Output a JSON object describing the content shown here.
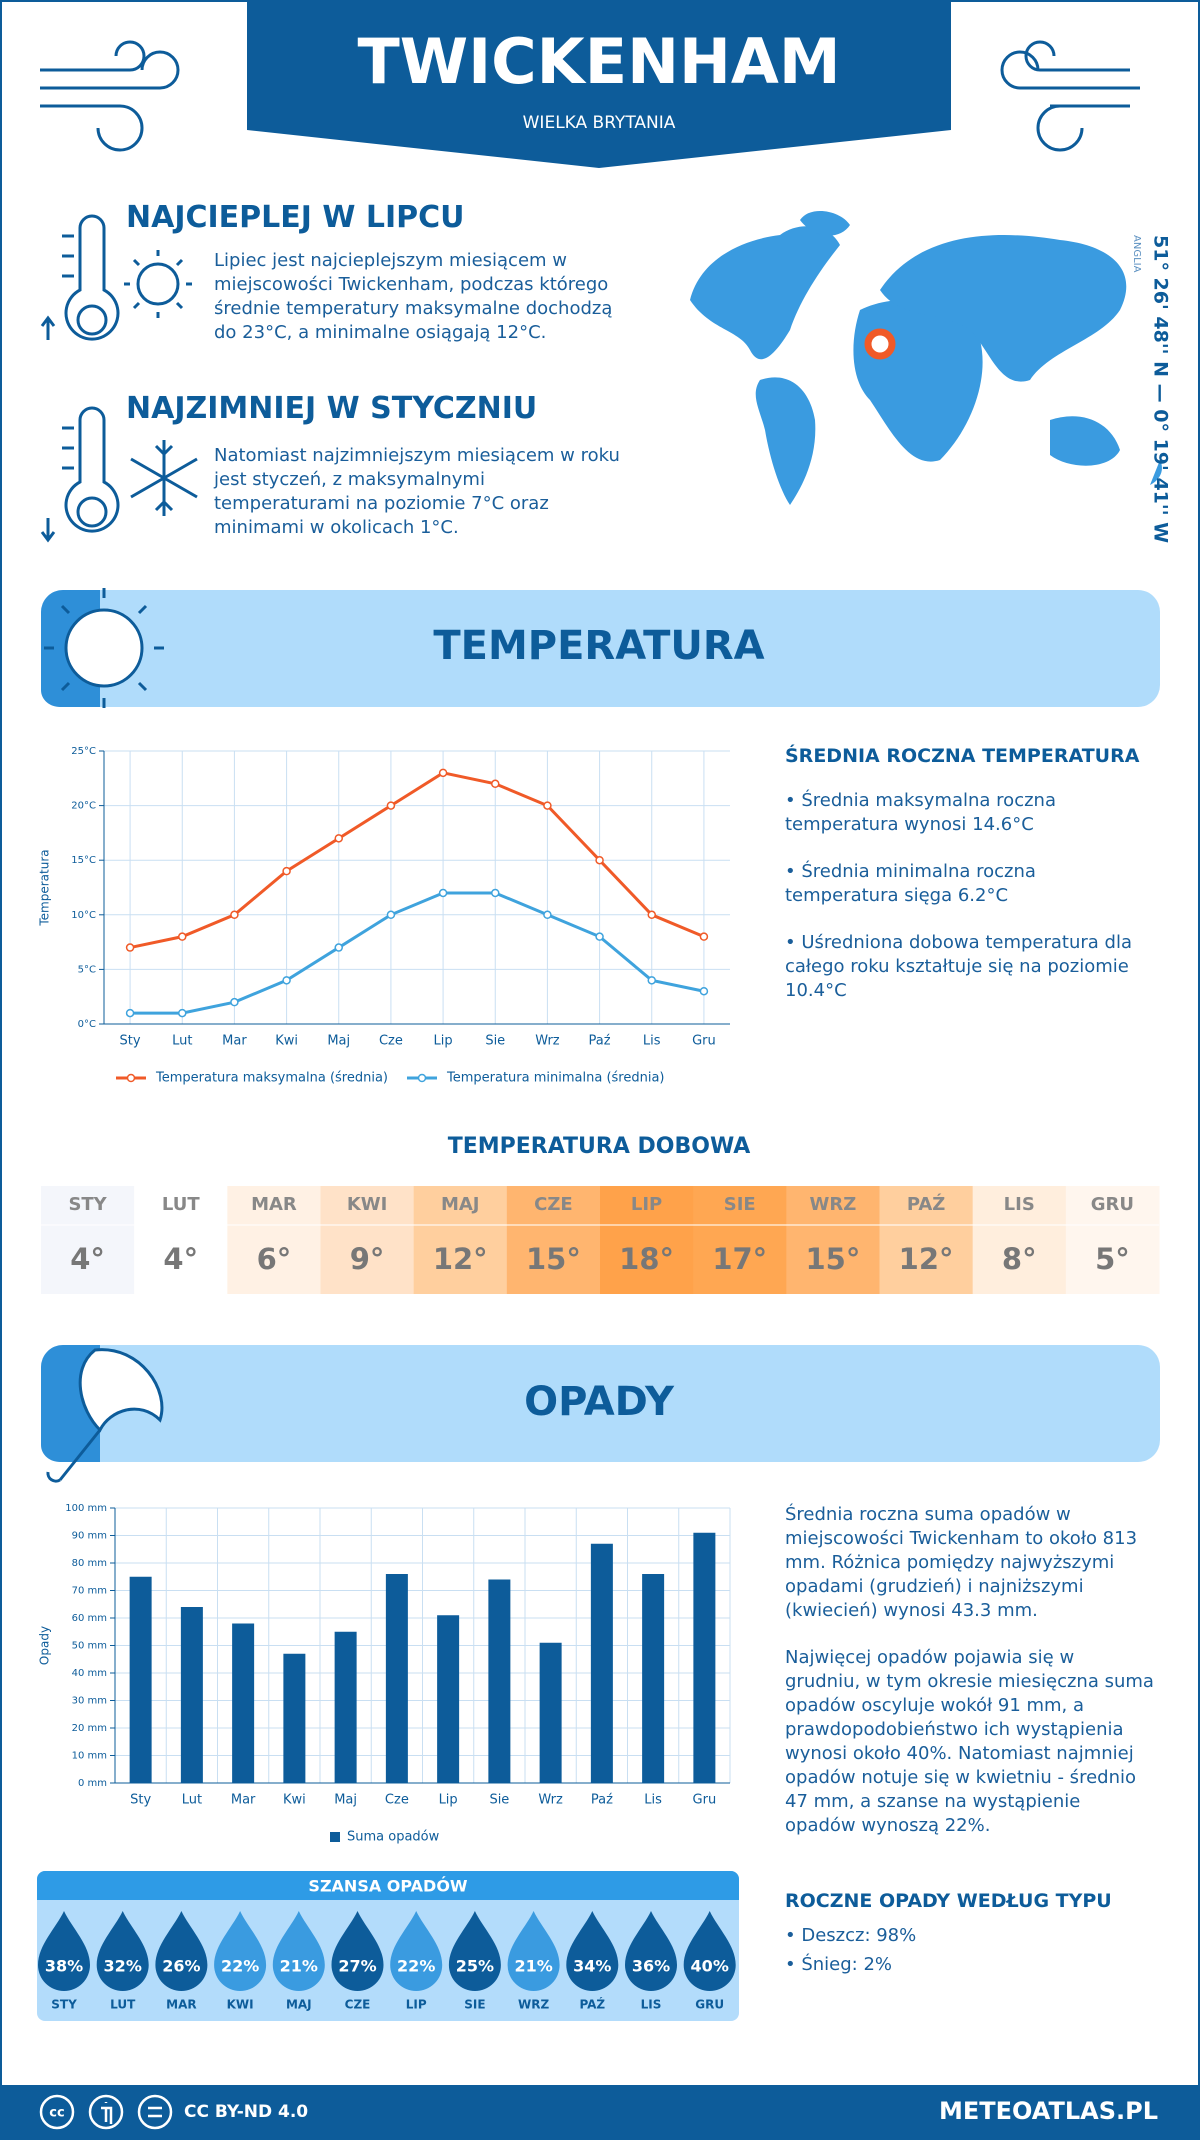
{
  "header": {
    "title": "TWICKENHAM",
    "subtitle": "WIELKA BRYTANIA"
  },
  "warmest": {
    "title": "NAJCIEPLEJ W LIPCU",
    "text": "Lipiec jest najcieplejszym miesiącem w miejscowości Twickenham, podczas którego średnie temperatury maksymalne dochodzą do 23°C, a minimalne osiągają 12°C."
  },
  "coldest": {
    "title": "NAJZIMNIEJ W STYCZNIU",
    "text": "Natomiast najzimniejszym miesiącem w roku jest styczeń, z maksymalnymi temperaturami na poziomie 7°C oraz minimami w okolicach 1°C."
  },
  "location": {
    "coordinates": "51° 26' 48'' N — 0° 19' 41'' W",
    "region": "ANGLIA"
  },
  "temperature_section": {
    "title": "TEMPERATURA",
    "summary_title": "ŚREDNIA ROCZNA TEMPERATURA",
    "bullets": [
      "• Średnia maksymalna roczna temperatura wynosi 14.6°C",
      "• Średnia minimalna roczna temperatura sięga 6.2°C",
      "• Uśredniona dobowa temperatura dla całego roku kształtuje się na poziomie 10.4°C"
    ]
  },
  "chart_data": [
    {
      "type": "line",
      "y_label": "Temperatura",
      "grid": true,
      "categories": [
        "Sty",
        "Lut",
        "Mar",
        "Kwi",
        "Maj",
        "Cze",
        "Lip",
        "Sie",
        "Wrz",
        "Paź",
        "Lis",
        "Gru"
      ],
      "series": [
        {
          "name": "Temperatura maksymalna (średnia)",
          "color": "#f05a28",
          "values": [
            7,
            8,
            10,
            14,
            17,
            20,
            23,
            22,
            20,
            15,
            10,
            8
          ]
        },
        {
          "name": "Temperatura minimalna (średnia)",
          "color": "#3fa3dd",
          "values": [
            1,
            1,
            2,
            4,
            7,
            10,
            12,
            12,
            10,
            8,
            4,
            3
          ]
        }
      ],
      "ylim": [
        0,
        25
      ],
      "yticks": [
        {
          "value": 0,
          "label": "0°C"
        },
        {
          "value": 5,
          "label": "5°C"
        },
        {
          "value": 10,
          "label": "10°C"
        },
        {
          "value": 15,
          "label": "15°C"
        },
        {
          "value": 20,
          "label": "20°C"
        },
        {
          "value": 25,
          "label": "25°C"
        }
      ]
    },
    {
      "type": "bar",
      "y_label": "Opady",
      "grid": true,
      "categories": [
        "Sty",
        "Lut",
        "Mar",
        "Kwi",
        "Maj",
        "Cze",
        "Lip",
        "Sie",
        "Wrz",
        "Paź",
        "Lis",
        "Gru"
      ],
      "series": [
        {
          "name": "Suma opadów",
          "color": "#0d5c9a",
          "values": [
            75,
            64,
            58,
            47,
            55,
            76,
            61,
            74,
            51,
            87,
            76,
            91
          ]
        }
      ],
      "ylim": [
        0,
        100
      ],
      "yticks": [
        {
          "value": 0,
          "label": "0 mm"
        },
        {
          "value": 10,
          "label": "10 mm"
        },
        {
          "value": 20,
          "label": "20 mm"
        },
        {
          "value": 30,
          "label": "30 mm"
        },
        {
          "value": 40,
          "label": "40 mm"
        },
        {
          "value": 50,
          "label": "50 mm"
        },
        {
          "value": 60,
          "label": "60 mm"
        },
        {
          "value": 70,
          "label": "70 mm"
        },
        {
          "value": 80,
          "label": "80 mm"
        },
        {
          "value": 90,
          "label": "90 mm"
        },
        {
          "value": 100,
          "label": "100 mm"
        }
      ]
    }
  ],
  "daily_temperature": {
    "title": "TEMPERATURA DOBOWA",
    "months": [
      "STY",
      "LUT",
      "MAR",
      "KWI",
      "MAJ",
      "CZE",
      "LIP",
      "SIE",
      "WRZ",
      "PAŹ",
      "LIS",
      "GRU"
    ],
    "values": [
      "4°",
      "4°",
      "6°",
      "9°",
      "12°",
      "15°",
      "18°",
      "17°",
      "15°",
      "12°",
      "8°",
      "5°"
    ],
    "colors": [
      "#f4f6fb",
      "#ffffff",
      "#fff1e4",
      "#ffe2c8",
      "#ffcf9e",
      "#ffb56f",
      "#ffa24a",
      "#ffa752",
      "#ffb56f",
      "#ffcf9e",
      "#ffeedd",
      "#fff6ee"
    ]
  },
  "precipitation_section": {
    "title": "OPADY",
    "paragraphs": [
      "Średnia roczna suma opadów w miejscowości Twickenham to około 813 mm. Różnica pomiędzy najwyższymi opadami (grudzień) i najniższymi (kwiecień) wynosi 43.3 mm.",
      "Najwięcej opadów pojawia się w grudniu, w tym okresie miesięczna suma opadów oscyluje wokół 91 mm, a prawdopodobieństwo ich wystąpienia wynosi około 40%. Natomiast najmniej opadów notuje się w kwietniu - średnio 47 mm, a szanse na wystąpienie opadów wynoszą 22%."
    ]
  },
  "rain_chance": {
    "title": "SZANSA OPADÓW",
    "months": [
      "STY",
      "LUT",
      "MAR",
      "KWI",
      "MAJ",
      "CZE",
      "LIP",
      "SIE",
      "WRZ",
      "PAŹ",
      "LIS",
      "GRU"
    ],
    "values": [
      "38%",
      "32%",
      "26%",
      "22%",
      "21%",
      "27%",
      "22%",
      "25%",
      "21%",
      "34%",
      "36%",
      "40%"
    ],
    "colors": [
      "#0d5c9a",
      "#0d5c9a",
      "#0d5c9a",
      "#3a9be0",
      "#3a9be0",
      "#0d5c9a",
      "#3a9be0",
      "#0d5c9a",
      "#3a9be0",
      "#0d5c9a",
      "#0d5c9a",
      "#0d5c9a"
    ]
  },
  "precip_type": {
    "title": "ROCZNE OPADY WEDŁUG TYPU",
    "items": [
      "• Deszcz: 98%",
      "• Śnieg: 2%"
    ]
  },
  "footer": {
    "license": "CC BY-ND 4.0",
    "site": "METEOATLAS.PL"
  }
}
